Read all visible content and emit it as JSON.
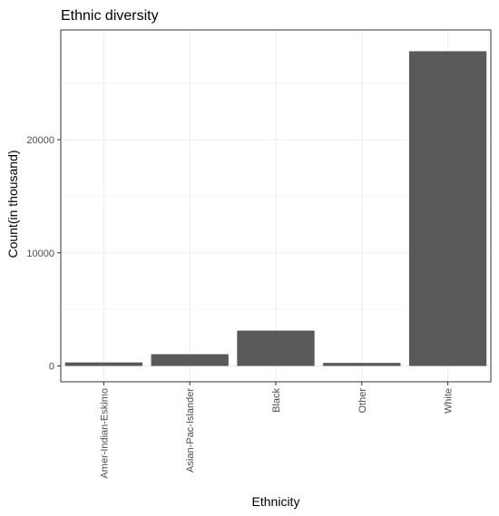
{
  "chart_data": {
    "type": "bar",
    "title": "Ethnic diversity",
    "xlabel": "Ethnicity",
    "ylabel": "Count(in thousand)",
    "categories": [
      "Amer-Indian-Eskimo",
      "Asian-Pac-Islander",
      "Black",
      "Other",
      "White"
    ],
    "values": [
      311,
      1039,
      3124,
      271,
      27816
    ],
    "ylim": [
      -1400,
      29700
    ],
    "yticks": [
      0,
      10000,
      20000
    ],
    "ytick_labels": [
      "0",
      "10000",
      "20000"
    ],
    "grid": true,
    "legend": "none",
    "colors": {
      "bar": "#595959",
      "panel_border": "#333333",
      "grid_major": "#ebebeb",
      "grid_minor": "#f5f5f5",
      "tick_label": "#4d4d4d"
    }
  }
}
